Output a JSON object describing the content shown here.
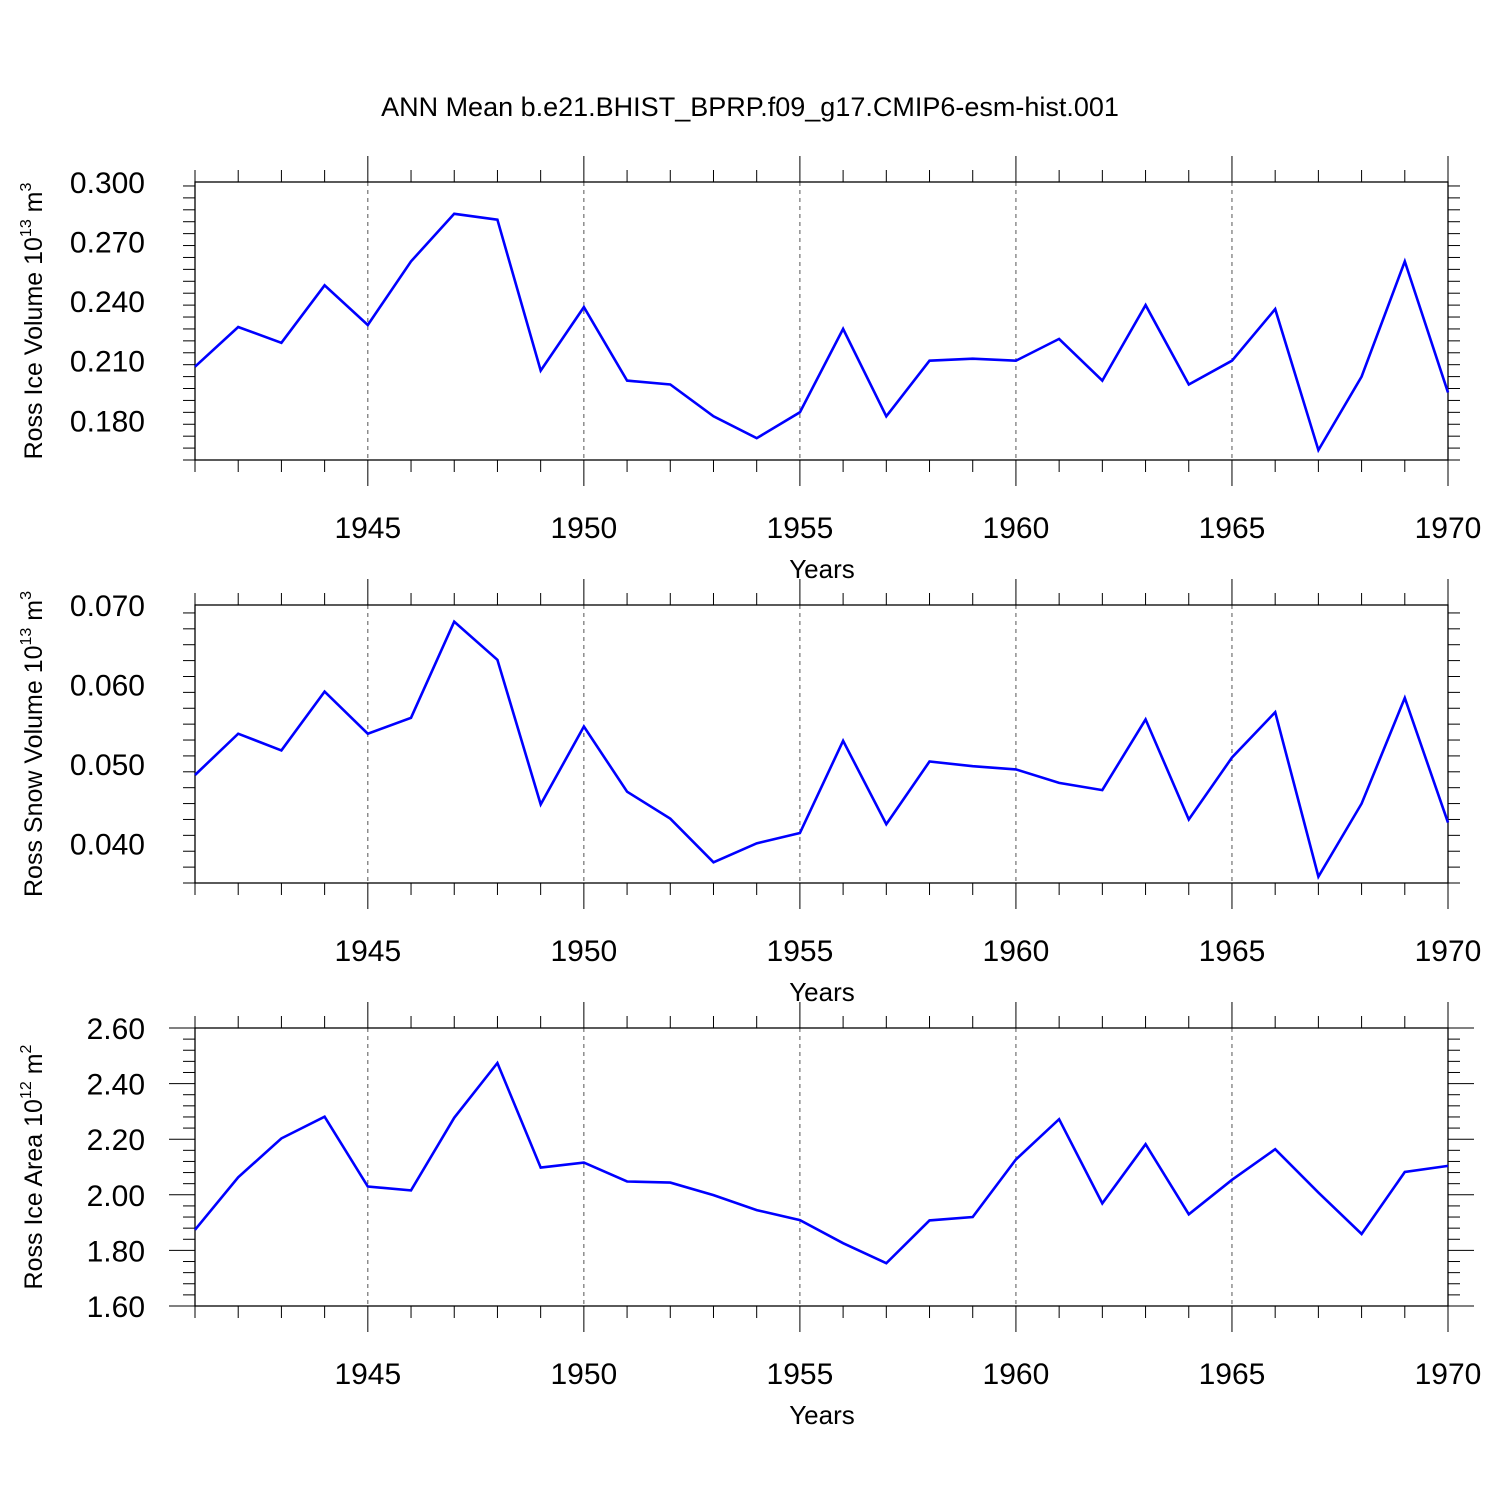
{
  "title": "ANN Mean b.e21.BHIST_BPRP.f09_g17.CMIP6-esm-hist.001",
  "colors": {
    "line": "#0000ff",
    "axis": "#000000",
    "grid": "#555555"
  },
  "chart_data": [
    {
      "type": "line",
      "ylabel": {
        "main": "Ross Ice Volume 10",
        "sup": "13",
        "unit": " m",
        "unit_sup": "3"
      },
      "xlabel": "Years",
      "xlim": [
        1941,
        1970
      ],
      "ylim": [
        0.16,
        0.3
      ],
      "yticks": [
        0.18,
        0.21,
        0.24,
        0.27,
        0.3
      ],
      "ytick_labels": [
        "0.180",
        "0.210",
        "0.240",
        "0.270",
        "0.300"
      ],
      "xticks": [
        1945,
        1950,
        1955,
        1960,
        1965,
        1970
      ],
      "xtick_labels": [
        "1945",
        "1950",
        "1955",
        "1960",
        "1965",
        "1970"
      ],
      "grid": "vertical dashed at major x ticks",
      "x": [
        1941,
        1942,
        1943,
        1944,
        1945,
        1946,
        1947,
        1948,
        1949,
        1950,
        1951,
        1952,
        1953,
        1954,
        1955,
        1956,
        1957,
        1958,
        1959,
        1960,
        1961,
        1962,
        1963,
        1964,
        1965,
        1966,
        1967,
        1968,
        1969,
        1970
      ],
      "values": [
        0.207,
        0.227,
        0.219,
        0.248,
        0.228,
        0.26,
        0.284,
        0.281,
        0.205,
        0.237,
        0.2,
        0.198,
        0.182,
        0.171,
        0.184,
        0.226,
        0.182,
        0.21,
        0.211,
        0.21,
        0.221,
        0.2,
        0.238,
        0.198,
        0.21,
        0.236,
        0.165,
        0.202,
        0.26,
        0.194
      ]
    },
    {
      "type": "line",
      "ylabel": {
        "main": "Ross Snow Volume 10",
        "sup": "13",
        "unit": " m",
        "unit_sup": "3"
      },
      "xlabel": "Years",
      "xlim": [
        1941,
        1970
      ],
      "ylim": [
        0.035,
        0.07
      ],
      "yticks": [
        0.04,
        0.05,
        0.06,
        0.07
      ],
      "ytick_labels": [
        "0.040",
        "0.050",
        "0.060",
        "0.070"
      ],
      "xticks": [
        1945,
        1950,
        1955,
        1960,
        1965,
        1970
      ],
      "xtick_labels": [
        "1945",
        "1950",
        "1955",
        "1960",
        "1965",
        "1970"
      ],
      "grid": "vertical dashed at major x ticks",
      "x": [
        1941,
        1942,
        1943,
        1944,
        1945,
        1946,
        1947,
        1948,
        1949,
        1950,
        1951,
        1952,
        1953,
        1954,
        1955,
        1956,
        1957,
        1958,
        1959,
        1960,
        1961,
        1962,
        1963,
        1964,
        1965,
        1966,
        1967,
        1968,
        1969,
        1970
      ],
      "values": [
        0.0486,
        0.0538,
        0.0517,
        0.0591,
        0.0538,
        0.0558,
        0.0679,
        0.0631,
        0.0449,
        0.0547,
        0.0465,
        0.0431,
        0.0376,
        0.04,
        0.0413,
        0.0529,
        0.0424,
        0.0503,
        0.0497,
        0.0493,
        0.0476,
        0.0467,
        0.0556,
        0.043,
        0.0508,
        0.0565,
        0.0358,
        0.045,
        0.0583,
        0.0426
      ]
    },
    {
      "type": "line",
      "ylabel": {
        "main": "Ross Ice Area 10",
        "sup": "12",
        "unit": " m",
        "unit_sup": "2"
      },
      "xlabel": "Years",
      "xlim": [
        1941,
        1970
      ],
      "ylim": [
        1.6,
        2.6
      ],
      "yticks": [
        1.6,
        1.8,
        2.0,
        2.2,
        2.4,
        2.6
      ],
      "ytick_labels": [
        "1.60",
        "1.80",
        "2.00",
        "2.20",
        "2.40",
        "2.60"
      ],
      "xticks": [
        1945,
        1950,
        1955,
        1960,
        1965,
        1970
      ],
      "xtick_labels": [
        "1945",
        "1950",
        "1955",
        "1960",
        "1965",
        "1970"
      ],
      "grid": "vertical dashed at major x ticks",
      "x": [
        1941,
        1942,
        1943,
        1944,
        1945,
        1946,
        1947,
        1948,
        1949,
        1950,
        1951,
        1952,
        1953,
        1954,
        1955,
        1956,
        1957,
        1958,
        1959,
        1960,
        1961,
        1962,
        1963,
        1964,
        1965,
        1966,
        1967,
        1968,
        1969,
        1970
      ],
      "values": [
        1.874,
        2.063,
        2.203,
        2.281,
        2.03,
        2.016,
        2.277,
        2.474,
        2.098,
        2.116,
        2.048,
        2.044,
        1.999,
        1.945,
        1.909,
        1.826,
        1.754,
        1.908,
        1.92,
        2.127,
        2.272,
        1.969,
        2.182,
        1.93,
        2.054,
        2.164,
        2.008,
        1.859,
        2.082,
        2.104
      ]
    }
  ]
}
